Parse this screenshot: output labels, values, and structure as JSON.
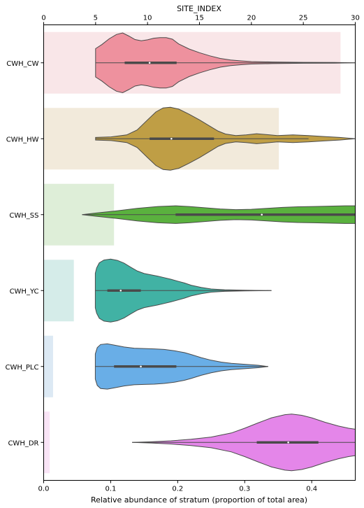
{
  "chart_data": {
    "type": "violin",
    "top_axis": {
      "label": "SITE_INDEX",
      "range": [
        0,
        30
      ],
      "ticks": [
        0,
        5,
        10,
        15,
        20,
        25,
        30
      ]
    },
    "bottom_axis": {
      "label": "Relative abundance of stratum (proportion of total area)",
      "range": [
        0,
        0.465
      ],
      "ticks": [
        0.0,
        0.1,
        0.2,
        0.3,
        0.4
      ],
      "tick_labels": [
        "0.0",
        "0.1",
        "0.2",
        "0.3",
        "0.4"
      ]
    },
    "categories": [
      "CWH_CW",
      "CWH_HW",
      "CWH_SS",
      "CWH_YC",
      "CWH_PLC",
      "CWH_DR"
    ],
    "bars": {
      "axis": "bottom",
      "values": [
        0.443,
        0.351,
        0.105,
        0.045,
        0.014,
        0.009
      ],
      "colors": [
        "#f9e6e8",
        "#f2eadb",
        "#deeed8",
        "#d5ece9",
        "#dce9f4",
        "#f9e4f6"
      ]
    },
    "violins": [
      {
        "category": "CWH_CW",
        "axis": "top",
        "color": "#ee919e",
        "range": [
          5.0,
          30.0
        ],
        "box": [
          7.8,
          12.8
        ],
        "median": 10.2,
        "density": [
          [
            5.0,
            0.45
          ],
          [
            5.6,
            0.58
          ],
          [
            6.3,
            0.76
          ],
          [
            7.0,
            0.9
          ],
          [
            7.6,
            0.95
          ],
          [
            8.2,
            0.85
          ],
          [
            8.8,
            0.74
          ],
          [
            9.4,
            0.7
          ],
          [
            10.0,
            0.73
          ],
          [
            10.6,
            0.78
          ],
          [
            11.2,
            0.8
          ],
          [
            11.8,
            0.8
          ],
          [
            12.4,
            0.75
          ],
          [
            13.0,
            0.6
          ],
          [
            14.0,
            0.44
          ],
          [
            15.0,
            0.32
          ],
          [
            16.0,
            0.22
          ],
          [
            17.0,
            0.14
          ],
          [
            18.0,
            0.09
          ],
          [
            19.0,
            0.06
          ],
          [
            20.0,
            0.04
          ],
          [
            22.0,
            0.025
          ],
          [
            25.0,
            0.015
          ],
          [
            28.0,
            0.01
          ],
          [
            30.0,
            0.0
          ]
        ]
      },
      {
        "category": "CWH_HW",
        "axis": "top",
        "color": "#bf9e45",
        "range": [
          5.0,
          30.0
        ],
        "box": [
          10.2,
          16.4
        ],
        "median": 12.3,
        "whisker": [
          5.0,
          25.5
        ],
        "density": [
          [
            5.0,
            0.04
          ],
          [
            6.5,
            0.06
          ],
          [
            8.0,
            0.12
          ],
          [
            9.0,
            0.28
          ],
          [
            10.0,
            0.6
          ],
          [
            10.8,
            0.85
          ],
          [
            11.5,
            0.98
          ],
          [
            12.2,
            1.0
          ],
          [
            13.0,
            0.94
          ],
          [
            14.0,
            0.78
          ],
          [
            15.0,
            0.6
          ],
          [
            16.0,
            0.4
          ],
          [
            16.8,
            0.24
          ],
          [
            17.5,
            0.15
          ],
          [
            18.5,
            0.1
          ],
          [
            19.5,
            0.12
          ],
          [
            20.5,
            0.16
          ],
          [
            21.5,
            0.13
          ],
          [
            22.5,
            0.1
          ],
          [
            24.0,
            0.12
          ],
          [
            25.5,
            0.1
          ],
          [
            27.0,
            0.07
          ],
          [
            28.5,
            0.04
          ],
          [
            30.0,
            0.0
          ]
        ]
      },
      {
        "category": "CWH_SS",
        "axis": "top",
        "color": "#5ab13e",
        "range": [
          3.7,
          30.0
        ],
        "box": [
          12.7,
          30.0
        ],
        "median": 21.0,
        "density": [
          [
            3.7,
            0.0
          ],
          [
            5.0,
            0.05
          ],
          [
            7.0,
            0.12
          ],
          [
            9.0,
            0.2
          ],
          [
            11.0,
            0.26
          ],
          [
            12.7,
            0.28
          ],
          [
            14.0,
            0.26
          ],
          [
            15.5,
            0.22
          ],
          [
            17.0,
            0.18
          ],
          [
            18.5,
            0.16
          ],
          [
            20.0,
            0.17
          ],
          [
            21.5,
            0.2
          ],
          [
            23.0,
            0.23
          ],
          [
            24.5,
            0.25
          ],
          [
            26.0,
            0.26
          ],
          [
            27.5,
            0.27
          ],
          [
            29.0,
            0.28
          ],
          [
            30.0,
            0.28
          ]
        ]
      },
      {
        "category": "CWH_YC",
        "axis": "bottom",
        "color": "#41b2a4",
        "range": [
          0.077,
          0.34
        ],
        "box": [
          0.095,
          0.145
        ],
        "median": 0.115,
        "density": [
          [
            0.077,
            0.55
          ],
          [
            0.079,
            0.72
          ],
          [
            0.083,
            0.88
          ],
          [
            0.09,
            0.97
          ],
          [
            0.1,
            1.0
          ],
          [
            0.11,
            0.96
          ],
          [
            0.12,
            0.87
          ],
          [
            0.13,
            0.74
          ],
          [
            0.14,
            0.62
          ],
          [
            0.15,
            0.54
          ],
          [
            0.16,
            0.5
          ],
          [
            0.17,
            0.46
          ],
          [
            0.18,
            0.41
          ],
          [
            0.19,
            0.36
          ],
          [
            0.2,
            0.3
          ],
          [
            0.21,
            0.24
          ],
          [
            0.22,
            0.17
          ],
          [
            0.235,
            0.1
          ],
          [
            0.25,
            0.05
          ],
          [
            0.27,
            0.025
          ],
          [
            0.3,
            0.012
          ],
          [
            0.34,
            0.0
          ]
        ]
      },
      {
        "category": "CWH_PLC",
        "axis": "bottom",
        "color": "#69aee7",
        "range": [
          0.077,
          0.335
        ],
        "box": [
          0.105,
          0.198
        ],
        "median": 0.145,
        "density": [
          [
            0.077,
            0.4
          ],
          [
            0.08,
            0.6
          ],
          [
            0.085,
            0.7
          ],
          [
            0.095,
            0.72
          ],
          [
            0.105,
            0.68
          ],
          [
            0.12,
            0.62
          ],
          [
            0.135,
            0.58
          ],
          [
            0.15,
            0.57
          ],
          [
            0.165,
            0.56
          ],
          [
            0.18,
            0.54
          ],
          [
            0.195,
            0.5
          ],
          [
            0.21,
            0.44
          ],
          [
            0.22,
            0.38
          ],
          [
            0.235,
            0.28
          ],
          [
            0.25,
            0.2
          ],
          [
            0.265,
            0.14
          ],
          [
            0.28,
            0.1
          ],
          [
            0.3,
            0.07
          ],
          [
            0.32,
            0.04
          ],
          [
            0.335,
            0.0
          ]
        ]
      },
      {
        "category": "CWH_DR",
        "axis": "bottom",
        "color": "#e486e9",
        "range": [
          0.132,
          0.465
        ],
        "box": [
          0.318,
          0.41
        ],
        "median": 0.365,
        "density": [
          [
            0.132,
            0.0
          ],
          [
            0.16,
            0.02
          ],
          [
            0.19,
            0.05
          ],
          [
            0.22,
            0.1
          ],
          [
            0.25,
            0.17
          ],
          [
            0.28,
            0.3
          ],
          [
            0.3,
            0.45
          ],
          [
            0.32,
            0.62
          ],
          [
            0.34,
            0.78
          ],
          [
            0.36,
            0.88
          ],
          [
            0.37,
            0.9
          ],
          [
            0.385,
            0.86
          ],
          [
            0.4,
            0.78
          ],
          [
            0.42,
            0.64
          ],
          [
            0.44,
            0.52
          ],
          [
            0.455,
            0.45
          ],
          [
            0.465,
            0.42
          ]
        ]
      }
    ]
  }
}
